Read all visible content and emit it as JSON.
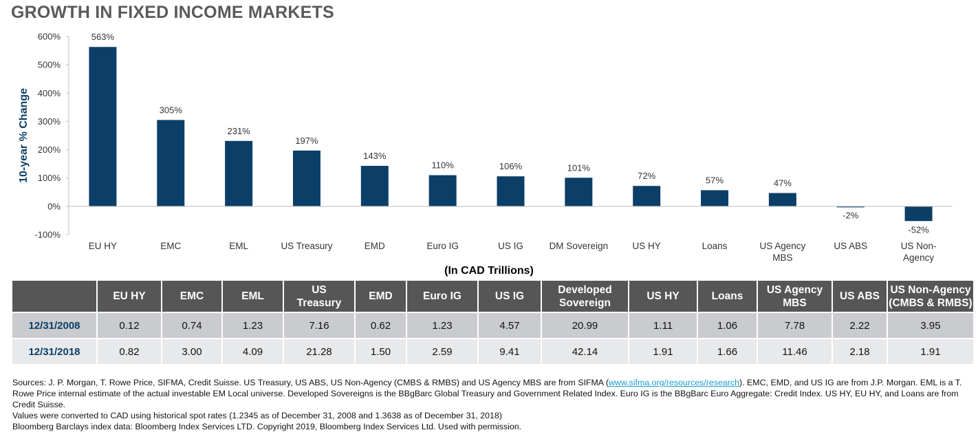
{
  "title": "GROWTH IN FIXED INCOME MARKETS",
  "chart_data": {
    "type": "bar",
    "categories": [
      "EU HY",
      "EMC",
      "EML",
      "US Treasury",
      "EMD",
      "Euro IG",
      "US IG",
      "DM Sovereign",
      "US HY",
      "Loans",
      "US Agency MBS",
      "US ABS",
      "US Non-Agency"
    ],
    "category_lines": [
      [
        "EU HY"
      ],
      [
        "EMC"
      ],
      [
        "EML"
      ],
      [
        "US Treasury"
      ],
      [
        "EMD"
      ],
      [
        "Euro IG"
      ],
      [
        "US IG"
      ],
      [
        "DM Sovereign"
      ],
      [
        "US HY"
      ],
      [
        "Loans"
      ],
      [
        "US Agency",
        "MBS"
      ],
      [
        "US ABS"
      ],
      [
        "US Non-",
        "Agency"
      ]
    ],
    "values": [
      563,
      305,
      231,
      197,
      143,
      110,
      106,
      101,
      72,
      57,
      47,
      -2,
      -52
    ],
    "value_labels": [
      "563%",
      "305%",
      "231%",
      "197%",
      "143%",
      "110%",
      "106%",
      "101%",
      "72%",
      "57%",
      "47%",
      "-2%",
      "-52%"
    ],
    "ylabel": "10-year % Change",
    "ylim": [
      -100,
      600
    ],
    "yticks": [
      -100,
      0,
      100,
      200,
      300,
      400,
      500,
      600
    ],
    "ytick_labels": [
      "-100%",
      "0%",
      "100%",
      "200%",
      "300%",
      "400%",
      "500%",
      "600%"
    ],
    "bar_color": "#0c3f67",
    "grid": false
  },
  "table": {
    "caption": "(In CAD Trillions)",
    "headers": [
      [
        "EU HY"
      ],
      [
        "EMC"
      ],
      [
        "EML"
      ],
      [
        "US",
        "Treasury"
      ],
      [
        "EMD"
      ],
      [
        "Euro IG"
      ],
      [
        "US IG"
      ],
      [
        "Developed",
        "Sovereign"
      ],
      [
        "US HY"
      ],
      [
        "Loans"
      ],
      [
        "US Agency",
        "MBS"
      ],
      [
        "US ABS"
      ],
      [
        "US Non-Agency",
        "(CMBS & RMBS)"
      ]
    ],
    "rows": [
      {
        "date": "12/31/2008",
        "values": [
          "0.12",
          "0.74",
          "1.23",
          "7.16",
          "0.62",
          "1.23",
          "4.57",
          "20.99",
          "1.11",
          "1.06",
          "7.78",
          "2.22",
          "3.95"
        ]
      },
      {
        "date": "12/31/2018",
        "values": [
          "0.82",
          "3.00",
          "4.09",
          "21.28",
          "1.50",
          "2.59",
          "9.41",
          "42.14",
          "1.91",
          "1.66",
          "11.46",
          "2.18",
          "1.91"
        ]
      }
    ],
    "header_color": "#565656",
    "date_color": "#0c3f67"
  },
  "notes": {
    "sources_before": "Sources: J. P. Morgan, T. Rowe Price, SIFMA, Credit Suisse.  US Treasury, US ABS, US Non-Agency (CMBS & RMBS) and US Agency MBS are from SIFMA (",
    "sources_link": "www.sifma.org/resources/research",
    "sources_after": "). EMC, EMD, and US IG are from J.P. Morgan. EML is a T. Rowe Price internal estimate of the actual investable EM Local universe. Developed Sovereigns is the BBgBarc Global Treasury and Government Related Index. Euro IG is the BBgBarc Euro Aggregate: Credit Index. US HY, EU HY, and Loans are from Credit Suisse.",
    "conversion": "Values were converted to CAD using historical spot rates (1.2345 as of December 31, 2008 and 1.3638 as of December 31, 2018)",
    "copyright": "Bloomberg Barclays index data: Bloomberg Index Services LTD. Copyright 2019, Bloomberg Index Services Ltd. Used with permission."
  }
}
